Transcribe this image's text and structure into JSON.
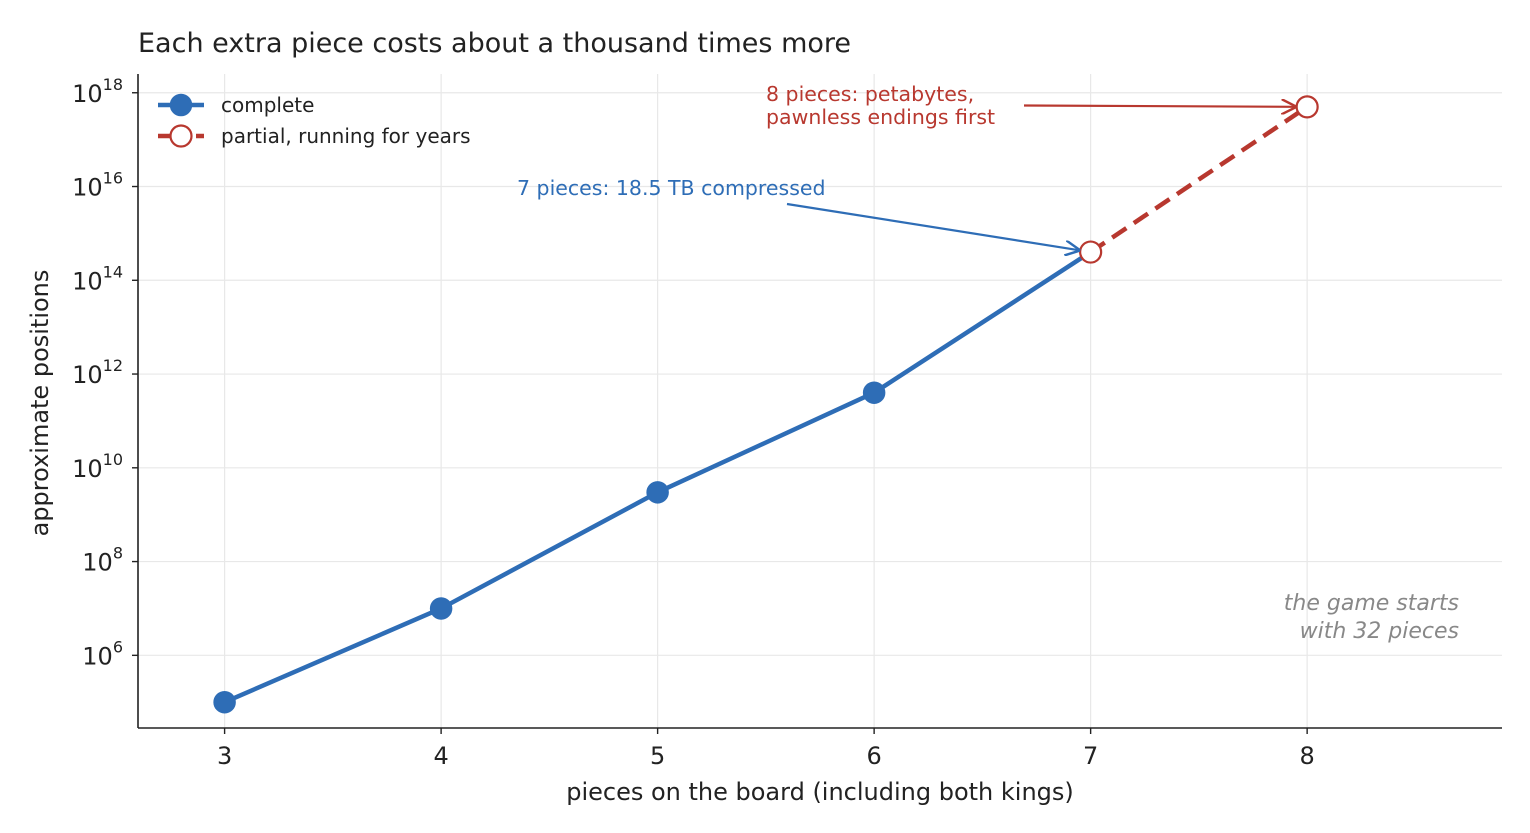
{
  "chart_data": {
    "type": "line",
    "title": "Each extra piece costs about a thousand times more",
    "xlabel": "pieces on the board (including both kings)",
    "ylabel": "approximate positions",
    "xlim": [
      2.6,
      8.9
    ],
    "ylim_log10": [
      4.45,
      18.4
    ],
    "y_scale": "log",
    "x_ticks": [
      3,
      4,
      5,
      6,
      7,
      8
    ],
    "y_ticks": [
      {
        "base": "10",
        "exp": "6",
        "value": 1000000.0
      },
      {
        "base": "10",
        "exp": "8",
        "value": 100000000.0
      },
      {
        "base": "10",
        "exp": "10",
        "value": 10000000000.0
      },
      {
        "base": "10",
        "exp": "12",
        "value": 1000000000000.0
      },
      {
        "base": "10",
        "exp": "14",
        "value": 100000000000000.0
      },
      {
        "base": "10",
        "exp": "16",
        "value": 1e+16
      },
      {
        "base": "10",
        "exp": "18",
        "value": 1e+18
      }
    ],
    "grid": true,
    "legend_position": "top-left",
    "series": [
      {
        "name": "complete",
        "style": "solid",
        "marker": "filled-circle",
        "color": "#2e6db6",
        "x": [
          3,
          4,
          5,
          6,
          7
        ],
        "y": [
          100000.0,
          10000000.0,
          3000000000.0,
          400000000000.0,
          400000000000000.0
        ]
      },
      {
        "name": "partial, running for years",
        "style": "dashed",
        "marker": "open-circle",
        "color": "#b8382f",
        "x": [
          7,
          8
        ],
        "y": [
          400000000000000.0,
          5e+17
        ]
      }
    ],
    "annotations": [
      {
        "lines": [
          "8 pieces: petabytes,",
          "pawnless endings first"
        ],
        "color": "#b8382f",
        "target": {
          "x": 8,
          "y": 5e+17
        }
      },
      {
        "lines": [
          "7 pieces: 18.5 TB compressed"
        ],
        "color": "#2e6db6",
        "target": {
          "x": 7,
          "y": 400000000000000.0
        }
      }
    ],
    "note": [
      "the game starts",
      "with 32 pieces"
    ]
  }
}
